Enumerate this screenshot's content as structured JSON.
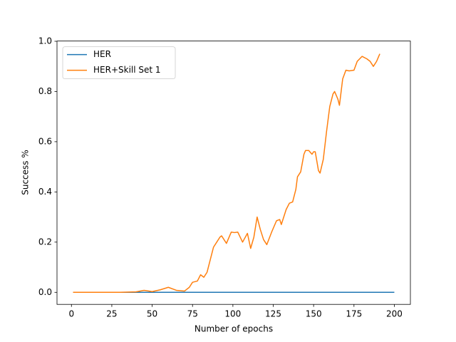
{
  "chart_data": {
    "type": "line",
    "x_label": "Number of epochs",
    "y_label": "Success %",
    "xlim": [
      -8.95,
      209.95
    ],
    "ylim": [
      -0.048,
      1.001
    ],
    "xticks": [
      0,
      25,
      50,
      75,
      100,
      125,
      150,
      175,
      200
    ],
    "yticks": [
      {
        "value": 0,
        "label": "0.0"
      },
      {
        "value": 0.2,
        "label": "0.2"
      },
      {
        "value": 0.4,
        "label": "0.4"
      },
      {
        "value": 0.6,
        "label": "0.6"
      },
      {
        "value": 0.8,
        "label": "0.8"
      },
      {
        "value": 1,
        "label": "1.0"
      }
    ],
    "legend": "upper left",
    "grid": false,
    "series": [
      {
        "name": "HER",
        "color": "#1f77b4",
        "x": [
          1,
          200
        ],
        "values": [
          0,
          0
        ]
      },
      {
        "name": "HER+Skill Set 1",
        "color": "#ff7f0e",
        "x": [
          1,
          10,
          20,
          30,
          40,
          45,
          50,
          55,
          60,
          65,
          70,
          73,
          75,
          78,
          80,
          82,
          84,
          86,
          88,
          90,
          92,
          93,
          96,
          99,
          101,
          103,
          106,
          109,
          111,
          113,
          115,
          117,
          119,
          121,
          124,
          127,
          129,
          130,
          133,
          135,
          137,
          139,
          140,
          142,
          144,
          145,
          147,
          149,
          150,
          151,
          153,
          154,
          156,
          158,
          160,
          162,
          163,
          165,
          166,
          168,
          170,
          172,
          175,
          177,
          180,
          183,
          185,
          187,
          189,
          191
        ],
        "values": [
          0,
          0,
          0,
          0,
          0.002,
          0.008,
          0.003,
          0.01,
          0.02,
          0.008,
          0.005,
          0.02,
          0.04,
          0.045,
          0.07,
          0.06,
          0.08,
          0.13,
          0.18,
          0.2,
          0.22,
          0.225,
          0.195,
          0.24,
          0.238,
          0.24,
          0.2,
          0.235,
          0.175,
          0.22,
          0.3,
          0.25,
          0.21,
          0.19,
          0.24,
          0.285,
          0.29,
          0.27,
          0.33,
          0.355,
          0.36,
          0.41,
          0.46,
          0.48,
          0.55,
          0.565,
          0.565,
          0.55,
          0.56,
          0.56,
          0.485,
          0.475,
          0.53,
          0.64,
          0.74,
          0.79,
          0.8,
          0.77,
          0.745,
          0.85,
          0.885,
          0.882,
          0.885,
          0.92,
          0.94,
          0.93,
          0.92,
          0.9,
          0.92,
          0.95
        ]
      }
    ]
  }
}
